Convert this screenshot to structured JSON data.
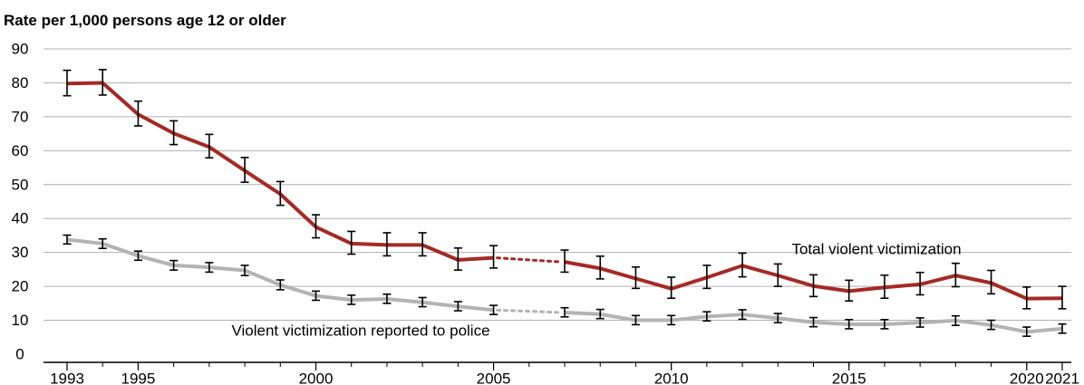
{
  "chart_data": {
    "type": "line",
    "title": "",
    "ylabel": "Rate per 1,000 persons age 12 or older",
    "xlabel": "",
    "ylim": [
      0,
      90
    ],
    "yticks": [
      0,
      10,
      20,
      30,
      40,
      50,
      60,
      70,
      80,
      90
    ],
    "xlim": [
      1993,
      2021
    ],
    "xtick_labels": [
      "1993",
      "1995",
      "2000",
      "2005",
      "2010",
      "2015",
      "2020",
      "2021"
    ],
    "xtick_values": [
      1993,
      1995,
      2000,
      2005,
      2010,
      2015,
      2020,
      2021
    ],
    "grid": "horizontal",
    "series": [
      {
        "name": "Total violent victimization",
        "color": "#a52a24",
        "points": [
          {
            "x": 1993,
            "y": 79.8,
            "lo": 76.2,
            "hi": 83.7
          },
          {
            "x": 1994,
            "y": 80.0,
            "lo": 76.4,
            "hi": 83.9
          },
          {
            "x": 1995,
            "y": 70.7,
            "lo": 67.3,
            "hi": 74.6
          },
          {
            "x": 1996,
            "y": 65.1,
            "lo": 61.8,
            "hi": 68.8
          },
          {
            "x": 1997,
            "y": 61.1,
            "lo": 57.9,
            "hi": 64.8
          },
          {
            "x": 1998,
            "y": 54.1,
            "lo": 50.7,
            "hi": 58.0
          },
          {
            "x": 1999,
            "y": 47.2,
            "lo": 43.9,
            "hi": 50.9
          },
          {
            "x": 2000,
            "y": 37.5,
            "lo": 34.3,
            "hi": 41.1
          },
          {
            "x": 2001,
            "y": 32.6,
            "lo": 29.5,
            "hi": 36.2
          },
          {
            "x": 2002,
            "y": 32.2,
            "lo": 29.0,
            "hi": 35.8
          },
          {
            "x": 2003,
            "y": 32.2,
            "lo": 29.0,
            "hi": 35.8
          },
          {
            "x": 2004,
            "y": 27.8,
            "lo": 24.8,
            "hi": 31.3
          },
          {
            "x": 2005,
            "y": 28.4,
            "lo": 25.4,
            "hi": 32.0
          },
          {
            "x": 2007,
            "y": 27.2,
            "lo": 24.2,
            "hi": 30.7
          },
          {
            "x": 2008,
            "y": 25.3,
            "lo": 22.2,
            "hi": 28.9
          },
          {
            "x": 2009,
            "y": 22.3,
            "lo": 19.4,
            "hi": 25.7
          },
          {
            "x": 2010,
            "y": 19.3,
            "lo": 16.5,
            "hi": 22.7
          },
          {
            "x": 2011,
            "y": 22.6,
            "lo": 19.4,
            "hi": 26.2
          },
          {
            "x": 2012,
            "y": 26.1,
            "lo": 22.8,
            "hi": 29.8
          },
          {
            "x": 2013,
            "y": 23.2,
            "lo": 20.0,
            "hi": 26.6
          },
          {
            "x": 2014,
            "y": 20.1,
            "lo": 17.0,
            "hi": 23.4
          },
          {
            "x": 2015,
            "y": 18.6,
            "lo": 15.7,
            "hi": 21.8
          },
          {
            "x": 2016,
            "y": 19.7,
            "lo": 16.5,
            "hi": 23.3
          },
          {
            "x": 2017,
            "y": 20.6,
            "lo": 17.5,
            "hi": 24.1
          },
          {
            "x": 2018,
            "y": 23.2,
            "lo": 19.9,
            "hi": 26.8
          },
          {
            "x": 2019,
            "y": 21.0,
            "lo": 17.8,
            "hi": 24.7
          },
          {
            "x": 2020,
            "y": 16.4,
            "lo": 13.4,
            "hi": 19.8
          },
          {
            "x": 2021,
            "y": 16.5,
            "lo": 13.4,
            "hi": 20.0
          }
        ]
      },
      {
        "name": "Violent victimization reported to police",
        "color": "#b5b3b2",
        "points": [
          {
            "x": 1993,
            "y": 33.8,
            "lo": 32.5,
            "hi": 35.1
          },
          {
            "x": 1994,
            "y": 32.6,
            "lo": 31.2,
            "hi": 34.0
          },
          {
            "x": 1995,
            "y": 29.0,
            "lo": 27.7,
            "hi": 30.4
          },
          {
            "x": 1996,
            "y": 26.2,
            "lo": 24.8,
            "hi": 27.6
          },
          {
            "x": 1997,
            "y": 25.6,
            "lo": 24.2,
            "hi": 27.0
          },
          {
            "x": 1998,
            "y": 24.7,
            "lo": 23.2,
            "hi": 26.2
          },
          {
            "x": 1999,
            "y": 20.4,
            "lo": 19.0,
            "hi": 21.9
          },
          {
            "x": 2000,
            "y": 17.2,
            "lo": 15.9,
            "hi": 18.6
          },
          {
            "x": 2001,
            "y": 16.0,
            "lo": 14.7,
            "hi": 17.4
          },
          {
            "x": 2002,
            "y": 16.3,
            "lo": 15.0,
            "hi": 17.7
          },
          {
            "x": 2003,
            "y": 15.3,
            "lo": 14.0,
            "hi": 16.7
          },
          {
            "x": 2004,
            "y": 14.1,
            "lo": 12.8,
            "hi": 15.5
          },
          {
            "x": 2005,
            "y": 13.0,
            "lo": 11.7,
            "hi": 14.4
          },
          {
            "x": 2007,
            "y": 12.3,
            "lo": 11.0,
            "hi": 13.7
          },
          {
            "x": 2008,
            "y": 11.8,
            "lo": 10.5,
            "hi": 13.2
          },
          {
            "x": 2009,
            "y": 10.0,
            "lo": 8.7,
            "hi": 11.4
          },
          {
            "x": 2010,
            "y": 10.0,
            "lo": 8.7,
            "hi": 11.4
          },
          {
            "x": 2011,
            "y": 11.1,
            "lo": 9.8,
            "hi": 12.5
          },
          {
            "x": 2012,
            "y": 11.7,
            "lo": 10.3,
            "hi": 13.1
          },
          {
            "x": 2013,
            "y": 10.6,
            "lo": 9.3,
            "hi": 12.0
          },
          {
            "x": 2014,
            "y": 9.4,
            "lo": 8.1,
            "hi": 10.8
          },
          {
            "x": 2015,
            "y": 8.8,
            "lo": 7.5,
            "hi": 10.2
          },
          {
            "x": 2016,
            "y": 8.8,
            "lo": 7.5,
            "hi": 10.2
          },
          {
            "x": 2017,
            "y": 9.3,
            "lo": 8.0,
            "hi": 10.7
          },
          {
            "x": 2018,
            "y": 9.9,
            "lo": 8.5,
            "hi": 11.3
          },
          {
            "x": 2019,
            "y": 8.6,
            "lo": 7.3,
            "hi": 10.0
          },
          {
            "x": 2020,
            "y": 6.6,
            "lo": 5.3,
            "hi": 8.0
          },
          {
            "x": 2021,
            "y": 7.5,
            "lo": 6.2,
            "hi": 8.9
          }
        ]
      }
    ],
    "gap": {
      "from": 2005,
      "to": 2007,
      "style": "dotted"
    }
  }
}
